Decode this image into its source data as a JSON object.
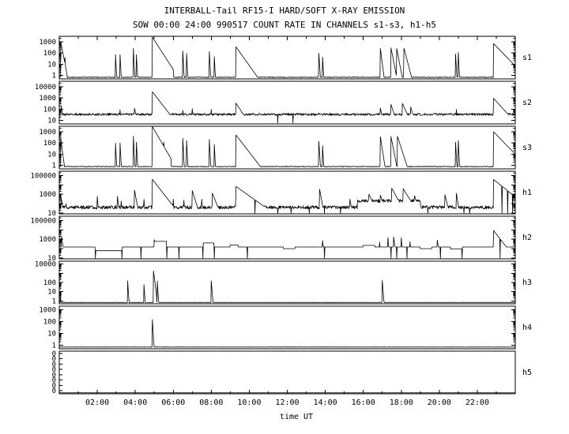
{
  "title": "INTERBALL-Tail RF15-I HARD/SOFT X-RAY EMISSION",
  "subtitle": "SOW 00:00 24:00 990517  COUNT RATE IN CHANNELS s1-s3, h1-h5",
  "xlabel": "time UT",
  "chart_data": {
    "type": "line",
    "title": "INTERBALL-Tail RF15-I HARD/SOFT X-RAY EMISSION",
    "subtitle": "SOW 00:00 24:00 990517  COUNT RATE IN CHANNELS s1-s3, h1-h5",
    "xlabel": "time UT",
    "x_range_hours": [
      0,
      24
    ],
    "grid": false,
    "line_color": "#000000",
    "x_ticks": [
      {
        "hour": 2,
        "label": "02:00"
      },
      {
        "hour": 4,
        "label": "04:00"
      },
      {
        "hour": 6,
        "label": "06:00"
      },
      {
        "hour": 8,
        "label": "08:00"
      },
      {
        "hour": 10,
        "label": "10:00"
      },
      {
        "hour": 12,
        "label": "12:00"
      },
      {
        "hour": 14,
        "label": "14:00"
      },
      {
        "hour": 16,
        "label": "16:00"
      },
      {
        "hour": 18,
        "label": "18:00"
      },
      {
        "hour": 20,
        "label": "20:00"
      },
      {
        "hour": 22,
        "label": "22:00"
      }
    ],
    "panels": [
      {
        "label": "s1",
        "scale": "log",
        "range": [
          0.5,
          3000
        ],
        "yticks": [
          {
            "v": 1000,
            "label": "1000"
          },
          {
            "v": 100,
            "label": "100"
          },
          {
            "v": 10,
            "label": "10"
          },
          {
            "v": 1,
            "label": "1"
          }
        ],
        "baseline": 0.7,
        "noise": 0.03,
        "steps": [],
        "spikes": [
          [
            0.08,
            900,
            0.15
          ],
          [
            0.3,
            40,
            0
          ],
          [
            2.95,
            150,
            0
          ],
          [
            3.2,
            70,
            0
          ],
          [
            3.9,
            250,
            0
          ],
          [
            4.05,
            150,
            0
          ],
          [
            4.9,
            2500,
            0.5
          ],
          [
            6.5,
            150,
            0
          ],
          [
            6.7,
            90,
            0
          ],
          [
            7.9,
            130,
            0
          ],
          [
            8.15,
            100,
            0
          ],
          [
            9.3,
            350,
            0.55
          ],
          [
            13.65,
            170,
            0.05
          ],
          [
            13.85,
            90,
            0
          ],
          [
            16.9,
            250,
            0.1
          ],
          [
            17.45,
            350,
            0.15
          ],
          [
            17.75,
            300,
            0.15
          ],
          [
            18.15,
            250,
            0.2
          ],
          [
            20.85,
            170,
            0
          ],
          [
            21.0,
            110,
            0
          ],
          [
            22.85,
            700,
            0.75
          ]
        ]
      },
      {
        "label": "s2",
        "scale": "log",
        "range": [
          5,
          30000
        ],
        "yticks": [
          {
            "v": 10000,
            "label": "10000"
          },
          {
            "v": 1000,
            "label": "1000"
          },
          {
            "v": 100,
            "label": "100"
          },
          {
            "v": 10,
            "label": "10"
          }
        ],
        "baseline": 35,
        "noise": 0.1,
        "steps": [],
        "spikes": [
          [
            0.1,
            200,
            0.1
          ],
          [
            3.2,
            90,
            0
          ],
          [
            3.95,
            150,
            0.15
          ],
          [
            4.9,
            3500,
            0.6
          ],
          [
            6.5,
            80,
            0
          ],
          [
            7.0,
            110,
            0.05
          ],
          [
            8.0,
            95,
            0.05
          ],
          [
            9.3,
            350,
            0.5
          ],
          [
            11.5,
            6,
            0
          ],
          [
            12.3,
            6,
            0
          ],
          [
            13.65,
            85,
            0.05
          ],
          [
            16.9,
            130,
            0.15
          ],
          [
            17.45,
            300,
            0.25
          ],
          [
            18.05,
            350,
            0.35
          ],
          [
            18.5,
            160,
            0.2
          ],
          [
            20.9,
            95,
            0.05
          ],
          [
            22.85,
            950,
            0.7
          ]
        ]
      },
      {
        "label": "s3",
        "scale": "log",
        "range": [
          0.5,
          3000
        ],
        "yticks": [
          {
            "v": 1000,
            "label": "1000"
          },
          {
            "v": 100,
            "label": "100"
          },
          {
            "v": 10,
            "label": "10"
          },
          {
            "v": 1,
            "label": "1"
          }
        ],
        "baseline": 0.8,
        "noise": 0.03,
        "steps": [],
        "spikes": [
          [
            0.08,
            250,
            0.1
          ],
          [
            2.95,
            200,
            0
          ],
          [
            3.2,
            100,
            0
          ],
          [
            3.9,
            400,
            0
          ],
          [
            4.05,
            250,
            0
          ],
          [
            4.9,
            2800,
            0.45
          ],
          [
            5.5,
            120,
            0
          ],
          [
            6.5,
            250,
            0
          ],
          [
            6.7,
            160,
            0
          ],
          [
            7.9,
            200,
            0
          ],
          [
            8.15,
            150,
            0
          ],
          [
            9.3,
            500,
            0.6
          ],
          [
            13.65,
            250,
            0.05
          ],
          [
            13.85,
            120,
            0
          ],
          [
            16.9,
            350,
            0.12
          ],
          [
            17.45,
            450,
            0.15
          ],
          [
            17.8,
            380,
            0.25
          ],
          [
            20.85,
            250,
            0
          ],
          [
            21.0,
            160,
            0
          ],
          [
            22.85,
            1000,
            0.75
          ]
        ]
      },
      {
        "label": "h1",
        "scale": "log",
        "range": [
          8,
          300000
        ],
        "yticks": [
          {
            "v": 100000,
            "label": "100000"
          },
          {
            "v": 1000,
            "label": "1000"
          },
          {
            "v": 10,
            "label": "10"
          }
        ],
        "baseline": 40,
        "noise": 0.18,
        "steps": [
          [
            15.7,
            19.0,
            200
          ]
        ],
        "spikes": [
          [
            0.1,
            400,
            0.1
          ],
          [
            0.35,
            200,
            0
          ],
          [
            2.0,
            600,
            0.05
          ],
          [
            3.05,
            900,
            0.08
          ],
          [
            3.25,
            400,
            0
          ],
          [
            3.95,
            3500,
            0.12
          ],
          [
            4.45,
            600,
            0
          ],
          [
            4.9,
            40000,
            0.5
          ],
          [
            6.0,
            300,
            0
          ],
          [
            6.55,
            500,
            0
          ],
          [
            7.0,
            2500,
            0.2
          ],
          [
            7.5,
            300,
            0
          ],
          [
            8.05,
            1500,
            0.25
          ],
          [
            9.3,
            7000,
            0.9
          ],
          [
            10.3,
            9,
            0
          ],
          [
            11.5,
            9,
            0
          ],
          [
            12.2,
            9,
            0
          ],
          [
            13.15,
            9,
            0
          ],
          [
            13.7,
            3500,
            0.12
          ],
          [
            13.95,
            9,
            0
          ],
          [
            14.8,
            9,
            0
          ],
          [
            15.3,
            300,
            0.1
          ],
          [
            16.3,
            1000,
            0.3
          ],
          [
            16.9,
            800,
            0.2
          ],
          [
            17.5,
            4500,
            0.35
          ],
          [
            18.1,
            4000,
            0.4
          ],
          [
            18.7,
            700,
            0.2
          ],
          [
            19.4,
            9,
            0
          ],
          [
            20.3,
            900,
            0.15
          ],
          [
            20.9,
            1300,
            0.1
          ],
          [
            21.3,
            9,
            0
          ],
          [
            21.6,
            9,
            0
          ],
          [
            22.85,
            40000,
            0.8
          ],
          [
            23.3,
            9,
            0
          ],
          [
            23.6,
            9,
            0
          ],
          [
            23.85,
            9,
            0
          ]
        ]
      },
      {
        "label": "h2",
        "scale": "log",
        "range": [
          8,
          300000
        ],
        "yticks": [
          {
            "v": 100000,
            "label": "100000"
          },
          {
            "v": 1000,
            "label": "1000"
          },
          {
            "v": 10,
            "label": "10"
          }
        ],
        "baseline": 150,
        "noise": 0,
        "steps": [
          [
            1.9,
            3.3,
            60
          ],
          [
            5.0,
            5.65,
            600
          ],
          [
            7.55,
            8.15,
            400
          ],
          [
            9.0,
            9.4,
            250
          ],
          [
            11.8,
            12.4,
            100
          ],
          [
            16.0,
            16.6,
            220
          ],
          [
            19.0,
            19.6,
            100
          ],
          [
            20.6,
            21.2,
            90
          ]
        ],
        "spikes": [
          [
            0.12,
            2000,
            0.1
          ],
          [
            1.9,
            9,
            0
          ],
          [
            3.3,
            9,
            0
          ],
          [
            4.3,
            9,
            0
          ],
          [
            5.0,
            900,
            0
          ],
          [
            5.65,
            9,
            0
          ],
          [
            6.3,
            9,
            0
          ],
          [
            7.55,
            9,
            0
          ],
          [
            8.15,
            9,
            0
          ],
          [
            9.9,
            9,
            0
          ],
          [
            13.85,
            1200,
            0.06
          ],
          [
            13.95,
            9,
            0
          ],
          [
            16.85,
            900,
            0.05
          ],
          [
            17.3,
            1500,
            0.05
          ],
          [
            17.45,
            9,
            0
          ],
          [
            17.6,
            1800,
            0.08
          ],
          [
            17.75,
            9,
            0
          ],
          [
            18.0,
            1500,
            0.05
          ],
          [
            18.3,
            9,
            0
          ],
          [
            18.45,
            1000,
            0.05
          ],
          [
            19.9,
            800,
            0.08
          ],
          [
            20.05,
            9,
            0
          ],
          [
            21.2,
            9,
            0
          ],
          [
            22.85,
            9000,
            0.5
          ],
          [
            23.2,
            9,
            0
          ]
        ]
      },
      {
        "label": "h3",
        "scale": "log",
        "range": [
          0.5,
          20000
        ],
        "yticks": [
          {
            "v": 10000,
            "label": "10000"
          },
          {
            "v": 100,
            "label": "100"
          },
          {
            "v": 10,
            "label": "10"
          },
          {
            "v": 1,
            "label": "1"
          }
        ],
        "baseline": 0.7,
        "noise": 0.01,
        "steps": [],
        "spikes": [
          [
            0.06,
            4,
            0
          ],
          [
            3.6,
            150,
            0
          ],
          [
            4.45,
            120,
            0
          ],
          [
            4.95,
            2500,
            0.08
          ],
          [
            5.15,
            300,
            0
          ],
          [
            8.0,
            150,
            0.05
          ],
          [
            17.0,
            170,
            0.05
          ]
        ]
      },
      {
        "label": "h4",
        "scale": "log",
        "range": [
          0.5,
          2000
        ],
        "yticks": [
          {
            "v": 1000,
            "label": "1000"
          },
          {
            "v": 100,
            "label": "100"
          },
          {
            "v": 10,
            "label": "10"
          },
          {
            "v": 1,
            "label": "1"
          }
        ],
        "baseline": 0.7,
        "noise": 0.01,
        "steps": [],
        "spikes": [
          [
            4.9,
            150,
            0.05
          ]
        ]
      },
      {
        "label": "h5",
        "scale": "flat_zero",
        "range": [
          0,
          1
        ],
        "ytick_labels": [
          "0",
          "0",
          "0",
          "0",
          "0",
          "0",
          "0",
          "0"
        ],
        "baseline": 0,
        "noise": 0,
        "steps": [],
        "spikes": []
      }
    ]
  }
}
